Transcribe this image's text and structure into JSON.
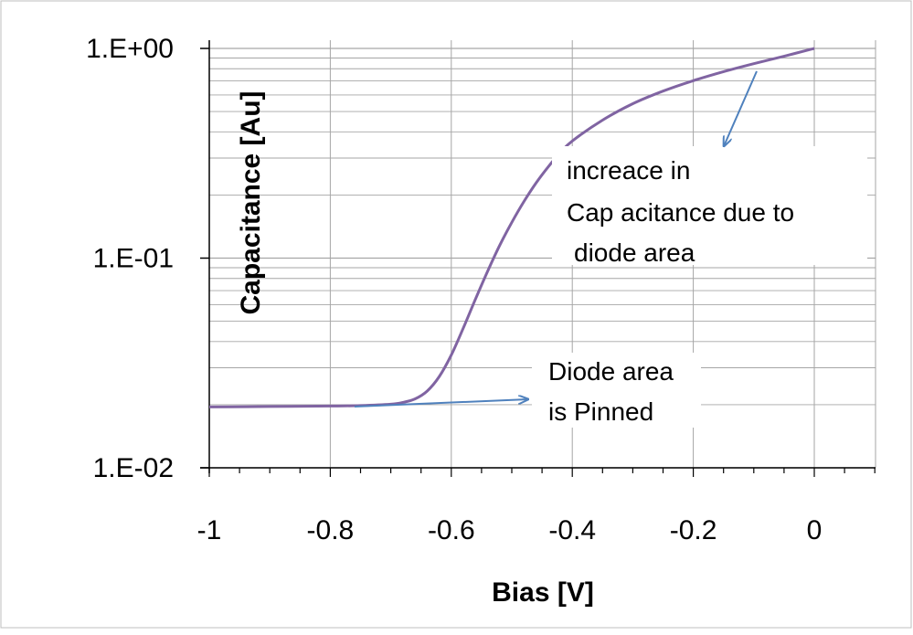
{
  "chart_data": {
    "type": "line",
    "title": "",
    "xlabel": "Bias [V]",
    "ylabel": "Capacitance [Au]",
    "x_scale": "linear",
    "y_scale": "log",
    "xlim": [
      -1,
      0.1
    ],
    "ylim": [
      0.01,
      1
    ],
    "x_ticks": [
      -1,
      -0.8,
      -0.6,
      -0.4,
      -0.2,
      0
    ],
    "x_tick_labels": [
      "-1",
      "-0.8",
      "-0.6",
      "-0.4",
      "-0.2",
      "0"
    ],
    "y_ticks": [
      0.01,
      0.1,
      1
    ],
    "y_tick_labels": [
      "1.E-02",
      "1.E-01",
      "1.E+00"
    ],
    "grid": true,
    "legend": "none",
    "series": [
      {
        "color": "#8064A2",
        "x": [
          -1,
          -0.9,
          -0.8,
          -0.75,
          -0.7,
          -0.68,
          -0.66,
          -0.64,
          -0.62,
          -0.6,
          -0.58,
          -0.56,
          -0.54,
          -0.52,
          -0.5,
          -0.48,
          -0.46,
          -0.44,
          -0.42,
          -0.4,
          -0.35,
          -0.3,
          -0.25,
          -0.2,
          -0.15,
          -0.1,
          -0.05,
          0
        ],
        "y": [
          0.0195,
          0.0196,
          0.0197,
          0.0198,
          0.0201,
          0.0205,
          0.0213,
          0.0232,
          0.0272,
          0.0345,
          0.0465,
          0.0638,
          0.0865,
          0.115,
          0.148,
          0.186,
          0.228,
          0.272,
          0.318,
          0.362,
          0.455,
          0.545,
          0.626,
          0.702,
          0.775,
          0.846,
          0.918,
          1.0
        ]
      }
    ],
    "annotations": [
      {
        "lines": [
          "increace in",
          "Cap acitance due to",
          "diode area"
        ],
        "arrow_color": "#4F81BD"
      },
      {
        "lines": [
          "Diode area",
          "is Pinned"
        ],
        "arrow_color": "#4F81BD"
      }
    ],
    "colors": {
      "grid": "#a6a6a6",
      "axis": "#000000",
      "arrow": "#4F81BD",
      "line": "#8064A2",
      "frame": "#bfbfbf"
    }
  }
}
